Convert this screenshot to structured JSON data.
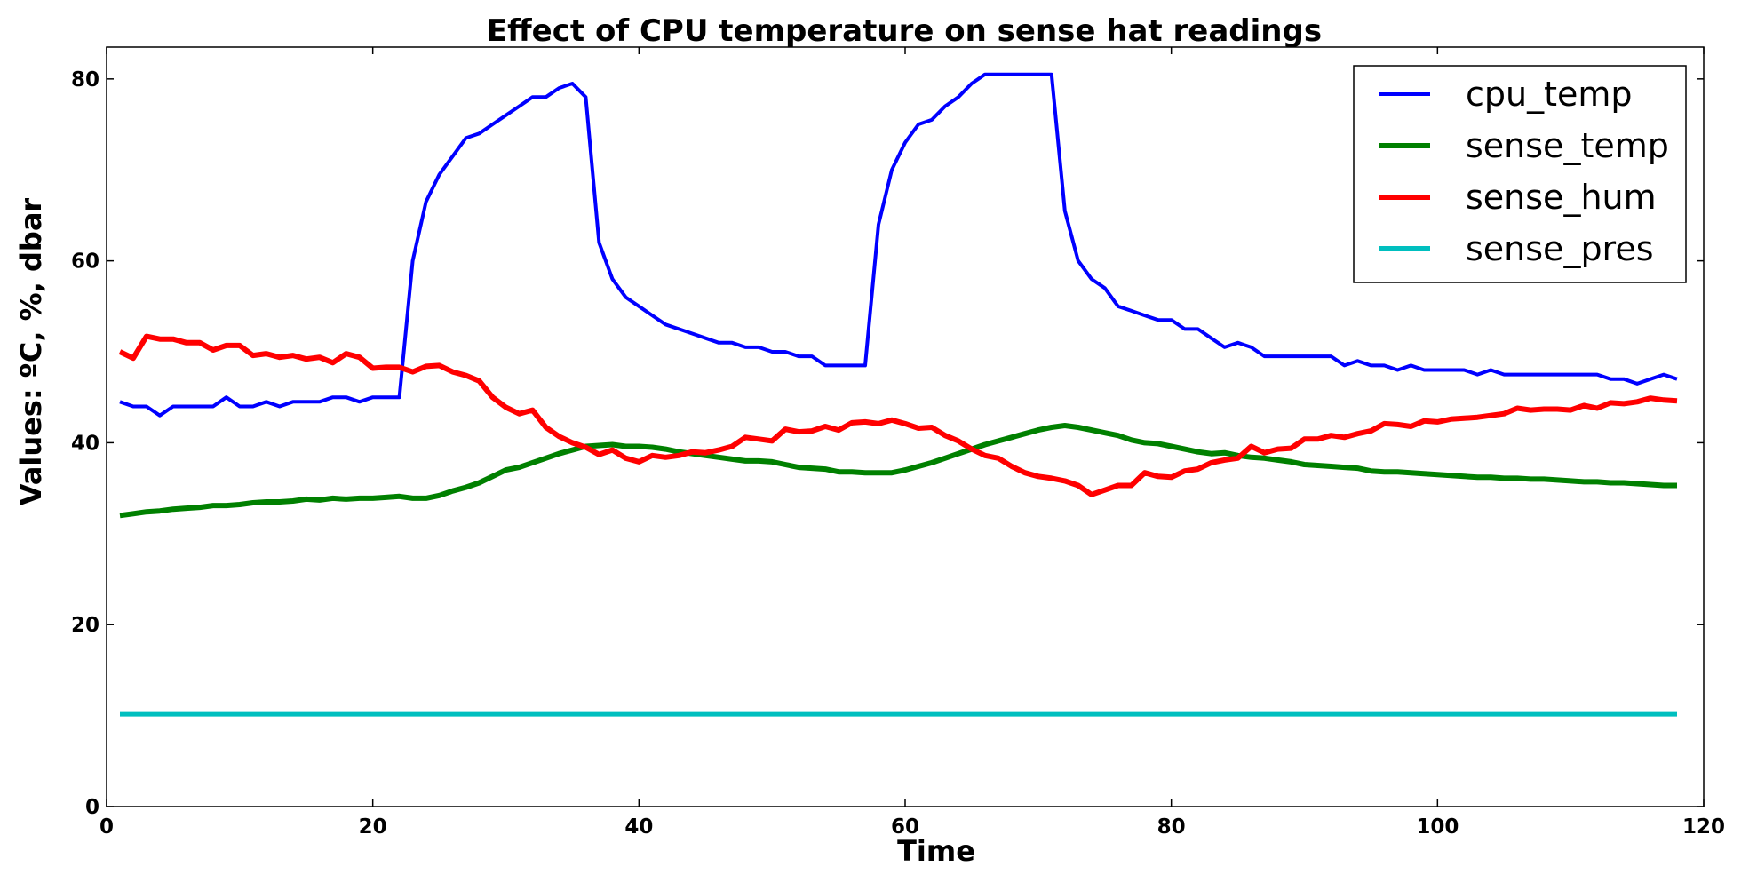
{
  "chart_data": {
    "type": "line",
    "title": "Effect of CPU temperature on sense hat readings",
    "xlabel": "Time",
    "ylabel": "Values: ºC, %, dbar",
    "xlim": [
      0,
      120
    ],
    "ylim": [
      0,
      83.5
    ],
    "xticks": [
      0,
      20,
      40,
      60,
      80,
      100,
      120
    ],
    "yticks": [
      0,
      20,
      40,
      60,
      80
    ],
    "grid": false,
    "legend_position": "top-right",
    "x": [
      1,
      2,
      3,
      4,
      5,
      6,
      7,
      8,
      9,
      10,
      11,
      12,
      13,
      14,
      15,
      16,
      17,
      18,
      19,
      20,
      21,
      22,
      23,
      24,
      25,
      26,
      27,
      28,
      29,
      30,
      31,
      32,
      33,
      34,
      35,
      36,
      37,
      38,
      39,
      40,
      41,
      42,
      43,
      44,
      45,
      46,
      47,
      48,
      49,
      50,
      51,
      52,
      53,
      54,
      55,
      56,
      57,
      58,
      59,
      60,
      61,
      62,
      63,
      64,
      65,
      66,
      67,
      68,
      69,
      70,
      71,
      72,
      73,
      74,
      75,
      76,
      77,
      78,
      79,
      80,
      81,
      82,
      83,
      84,
      85,
      86,
      87,
      88,
      89,
      90,
      91,
      92,
      93,
      94,
      95,
      96,
      97,
      98,
      99,
      100,
      101,
      102,
      103,
      104,
      105,
      106,
      107,
      108,
      109,
      110,
      111,
      112,
      113,
      114,
      115,
      116,
      117,
      118
    ],
    "series": [
      {
        "name": "cpu_temp",
        "color": "#0000ff",
        "values": [
          44.5,
          44.0,
          44.0,
          43.0,
          44.0,
          44.0,
          44.0,
          44.0,
          45.0,
          44.0,
          44.0,
          44.5,
          44.0,
          44.5,
          44.5,
          44.5,
          45.0,
          45.0,
          44.5,
          45.0,
          45.0,
          45.0,
          60.0,
          66.5,
          69.5,
          71.5,
          73.5,
          74.0,
          75.0,
          76.0,
          77.0,
          78.0,
          78.0,
          79.0,
          79.5,
          78.0,
          62.0,
          58.0,
          56.0,
          55.0,
          54.0,
          53.0,
          52.5,
          52.0,
          51.5,
          51.0,
          51.0,
          50.5,
          50.5,
          50.0,
          50.0,
          49.5,
          49.5,
          48.5,
          48.5,
          48.5,
          48.5,
          64.0,
          70.0,
          73.0,
          75.0,
          75.5,
          77.0,
          78.0,
          79.5,
          80.5,
          80.5,
          80.5,
          80.5,
          80.5,
          80.5,
          65.5,
          60.0,
          58.0,
          57.0,
          55.0,
          54.5,
          54.0,
          53.5,
          53.5,
          52.5,
          52.5,
          51.5,
          50.5,
          51.0,
          50.5,
          49.5,
          49.5,
          49.5,
          49.5,
          49.5,
          49.5,
          48.5,
          49.0,
          48.5,
          48.5,
          48.0,
          48.5,
          48.0,
          48.0,
          48.0,
          48.0,
          47.5,
          48.0,
          47.5,
          47.5,
          47.5,
          47.5,
          47.5,
          47.5,
          47.5,
          47.5,
          47.0,
          47.0,
          46.5,
          47.0,
          47.5,
          47.0
        ]
      },
      {
        "name": "sense_temp",
        "color": "#008000",
        "values": [
          32.0,
          32.2,
          32.4,
          32.5,
          32.7,
          32.8,
          32.9,
          33.1,
          33.1,
          33.2,
          33.4,
          33.5,
          33.5,
          33.6,
          33.8,
          33.7,
          33.9,
          33.8,
          33.9,
          33.9,
          34.0,
          34.1,
          33.9,
          33.9,
          34.2,
          34.7,
          35.1,
          35.6,
          36.3,
          37.0,
          37.3,
          37.8,
          38.3,
          38.8,
          39.2,
          39.6,
          39.7,
          39.8,
          39.6,
          39.6,
          39.5,
          39.3,
          39.0,
          38.8,
          38.6,
          38.4,
          38.2,
          38.0,
          38.0,
          37.9,
          37.6,
          37.3,
          37.2,
          37.1,
          36.8,
          36.8,
          36.7,
          36.7,
          36.7,
          37.0,
          37.4,
          37.8,
          38.3,
          38.8,
          39.3,
          39.8,
          40.2,
          40.6,
          41.0,
          41.4,
          41.7,
          41.9,
          41.7,
          41.4,
          41.1,
          40.8,
          40.3,
          40.0,
          39.9,
          39.6,
          39.3,
          39.0,
          38.8,
          38.9,
          38.6,
          38.4,
          38.3,
          38.1,
          37.9,
          37.6,
          37.5,
          37.4,
          37.3,
          37.2,
          36.9,
          36.8,
          36.8,
          36.7,
          36.6,
          36.5,
          36.4,
          36.3,
          36.2,
          36.2,
          36.1,
          36.1,
          36.0,
          36.0,
          35.9,
          35.8,
          35.7,
          35.7,
          35.6,
          35.6,
          35.5,
          35.4,
          35.3,
          35.3
        ]
      },
      {
        "name": "sense_hum",
        "color": "#ff0000",
        "values": [
          50.0,
          49.3,
          51.7,
          51.4,
          51.4,
          51.0,
          51.0,
          50.2,
          50.7,
          50.7,
          49.6,
          49.8,
          49.4,
          49.6,
          49.2,
          49.4,
          48.8,
          49.8,
          49.4,
          48.2,
          48.3,
          48.3,
          47.8,
          48.4,
          48.5,
          47.8,
          47.4,
          46.8,
          45.0,
          43.9,
          43.2,
          43.6,
          41.7,
          40.7,
          40.0,
          39.5,
          38.7,
          39.2,
          38.3,
          37.9,
          38.6,
          38.4,
          38.6,
          39.0,
          38.9,
          39.2,
          39.6,
          40.6,
          40.4,
          40.2,
          41.5,
          41.2,
          41.3,
          41.8,
          41.4,
          42.2,
          42.3,
          42.1,
          42.5,
          42.1,
          41.6,
          41.7,
          40.8,
          40.2,
          39.3,
          38.6,
          38.3,
          37.4,
          36.7,
          36.3,
          36.1,
          35.8,
          35.3,
          34.3,
          34.8,
          35.3,
          35.3,
          36.7,
          36.3,
          36.2,
          36.9,
          37.1,
          37.8,
          38.1,
          38.3,
          39.6,
          38.9,
          39.3,
          39.4,
          40.4,
          40.4,
          40.8,
          40.6,
          41.0,
          41.3,
          42.1,
          42.0,
          41.8,
          42.4,
          42.3,
          42.6,
          42.7,
          42.8,
          43.0,
          43.2,
          43.8,
          43.6,
          43.7,
          43.7,
          43.6,
          44.1,
          43.8,
          44.4,
          44.3,
          44.5,
          44.9,
          44.7,
          44.6
        ]
      },
      {
        "name": "sense_pres",
        "color": "#00bfbf",
        "values": [
          10.2,
          10.2,
          10.2,
          10.2,
          10.2,
          10.2,
          10.2,
          10.2,
          10.2,
          10.2,
          10.2,
          10.2,
          10.2,
          10.2,
          10.2,
          10.2,
          10.2,
          10.2,
          10.2,
          10.2,
          10.2,
          10.2,
          10.2,
          10.2,
          10.2,
          10.2,
          10.2,
          10.2,
          10.2,
          10.2,
          10.2,
          10.2,
          10.2,
          10.2,
          10.2,
          10.2,
          10.2,
          10.2,
          10.2,
          10.2,
          10.2,
          10.2,
          10.2,
          10.2,
          10.2,
          10.2,
          10.2,
          10.2,
          10.2,
          10.2,
          10.2,
          10.2,
          10.2,
          10.2,
          10.2,
          10.2,
          10.2,
          10.2,
          10.2,
          10.2,
          10.2,
          10.2,
          10.2,
          10.2,
          10.2,
          10.2,
          10.2,
          10.2,
          10.2,
          10.2,
          10.2,
          10.2,
          10.2,
          10.2,
          10.2,
          10.2,
          10.2,
          10.2,
          10.2,
          10.2,
          10.2,
          10.2,
          10.2,
          10.2,
          10.2,
          10.2,
          10.2,
          10.2,
          10.2,
          10.2,
          10.2,
          10.2,
          10.2,
          10.2,
          10.2,
          10.2,
          10.2,
          10.2,
          10.2,
          10.2,
          10.2,
          10.2,
          10.2,
          10.2,
          10.2,
          10.2,
          10.2,
          10.2,
          10.2,
          10.2,
          10.2,
          10.2,
          10.2,
          10.2,
          10.2,
          10.2,
          10.2,
          10.2
        ]
      }
    ]
  }
}
